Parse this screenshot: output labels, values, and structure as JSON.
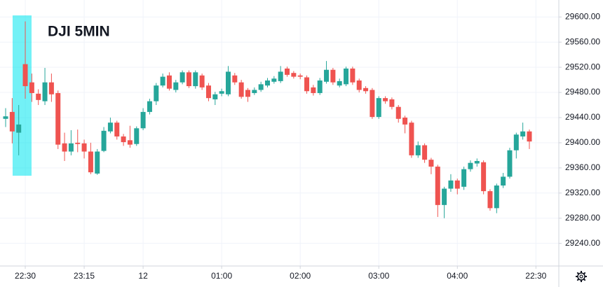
{
  "chart_data": {
    "type": "candlestick",
    "title": "DJI 5MIN",
    "up_color": "#26a69a",
    "down_color": "#ef5350",
    "grid": true,
    "xlim": [
      -0.86,
      84.5
    ],
    "xticks": [
      {
        "value": 3,
        "label": "22:30"
      },
      {
        "value": 12,
        "label": "23:15"
      },
      {
        "value": 21,
        "label": "12"
      },
      {
        "value": 33,
        "label": "01:00"
      },
      {
        "value": 45,
        "label": "02:00"
      },
      {
        "value": 57,
        "label": "03:00"
      },
      {
        "value": 69,
        "label": "04:00"
      },
      {
        "value": 81,
        "label": "22:30"
      }
    ],
    "ylim": [
      29204,
      29627
    ],
    "yticks": [
      {
        "value": 29240,
        "label": "29240.00"
      },
      {
        "value": 29280,
        "label": "29280.00"
      },
      {
        "value": 29320,
        "label": "29320.00"
      },
      {
        "value": 29360,
        "label": "29360.00"
      },
      {
        "value": 29400,
        "label": "29400.00"
      },
      {
        "value": 29440,
        "label": "29440.00"
      },
      {
        "value": 29480,
        "label": "29480.00"
      },
      {
        "value": 29520,
        "label": "29520.00"
      },
      {
        "value": 29560,
        "label": "29560.00"
      },
      {
        "value": 29600,
        "label": "29600.00"
      }
    ],
    "open": [
      29438,
      29449,
      29416,
      29525,
      29496,
      29478,
      29466,
      29496,
      29479,
      29399,
      29386,
      29400,
      29399,
      29386,
      29351,
      29387,
      29418,
      29432,
      29410,
      29404,
      29398,
      29423,
      29449,
      29466,
      29491,
      29507,
      29484,
      29496,
      29512,
      29490,
      29507,
      29491,
      29469,
      29478,
      29477,
      29507,
      29496,
      29484,
      29479,
      29484,
      29491,
      29497,
      29498,
      29518,
      29511,
      29507,
      29504,
      29488,
      29479,
      29497,
      29516,
      29491,
      29493,
      29518,
      29499,
      29487,
      29484,
      29441,
      29471,
      29469,
      29457,
      29440,
      29432,
      29380,
      29396,
      29373,
      29362,
      29301,
      29327,
      29340,
      29330,
      29358,
      29367,
      29369,
      29323,
      29296,
      29332,
      29346,
      29388,
      29410,
      29418
    ],
    "high": [
      29455,
      29471,
      29460,
      29593,
      29510,
      29485,
      29519,
      29510,
      29483,
      29416,
      29420,
      29421,
      29405,
      29400,
      29390,
      29425,
      29440,
      29435,
      29414,
      29427,
      29426,
      29455,
      29470,
      29495,
      29510,
      29512,
      29500,
      29515,
      29515,
      29515,
      29510,
      29495,
      29481,
      29486,
      29522,
      29511,
      29500,
      29487,
      29488,
      29497,
      29503,
      29506,
      29522,
      29521,
      29514,
      29510,
      29507,
      29492,
      29503,
      29530,
      29519,
      29502,
      29521,
      29521,
      29502,
      29490,
      29487,
      29474,
      29474,
      29472,
      29460,
      29443,
      29435,
      29402,
      29399,
      29376,
      29365,
      29330,
      29350,
      29343,
      29362,
      29372,
      29375,
      29372,
      29326,
      29335,
      29352,
      29392,
      29416,
      29432,
      29421
    ],
    "low": [
      29425,
      29399,
      29380,
      29470,
      29465,
      29460,
      29460,
      29465,
      29390,
      29371,
      29380,
      29385,
      29375,
      29350,
      29349,
      29385,
      29415,
      29405,
      29395,
      29392,
      29395,
      29420,
      29445,
      29460,
      29488,
      29483,
      29480,
      29493,
      29487,
      29486,
      29484,
      29466,
      29460,
      29474,
      29474,
      29492,
      29470,
      29465,
      29476,
      29481,
      29488,
      29494,
      29495,
      29505,
      29502,
      29501,
      29478,
      29475,
      29476,
      29494,
      29492,
      29488,
      29490,
      29492,
      29480,
      29478,
      29438,
      29438,
      29462,
      29453,
      29432,
      29415,
      29376,
      29376,
      29368,
      29350,
      29282,
      29280,
      29322,
      29318,
      29325,
      29354,
      29362,
      29318,
      29292,
      29288,
      29328,
      29343,
      29375,
      29405,
      29390
    ],
    "close": [
      29442,
      29418,
      29429,
      29490,
      29479,
      29468,
      29496,
      29477,
      29397,
      29386,
      29399,
      29398,
      29386,
      29353,
      29386,
      29419,
      29432,
      29410,
      29401,
      29397,
      29423,
      29449,
      29466,
      29491,
      29505,
      29486,
      29496,
      29512,
      29490,
      29512,
      29488,
      29471,
      29477,
      29482,
      29513,
      29496,
      29473,
      29473,
      29484,
      29493,
      29499,
      29502,
      29513,
      29508,
      29505,
      29505,
      29482,
      29479,
      29499,
      29516,
      29496,
      29498,
      29518,
      29496,
      29484,
      29482,
      29441,
      29471,
      29466,
      29457,
      29438,
      29429,
      29380,
      29396,
      29373,
      29362,
      29301,
      29327,
      29340,
      29327,
      29358,
      29368,
      29371,
      29323,
      29296,
      29332,
      29346,
      29388,
      29413,
      29418,
      29402
    ]
  }
}
